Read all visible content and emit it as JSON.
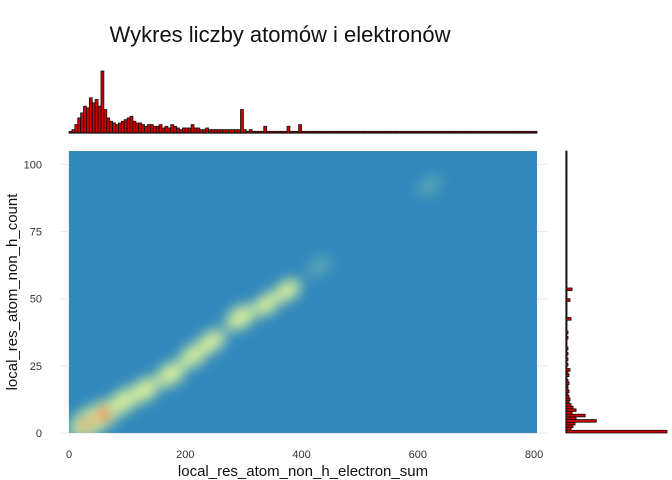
{
  "chart_data": {
    "type": "heatmap",
    "title": "Wykres liczby atomów i elektronów",
    "xlabel": "local_res_atom_non_h_electron_sum",
    "ylabel": "local_res_atom_non_h_count",
    "x_ticks": [
      "0",
      "200",
      "400",
      "600",
      "800"
    ],
    "y_ticks": [
      "0",
      "25",
      "50",
      "75",
      "100"
    ],
    "xlim": [
      0,
      805
    ],
    "ylim": [
      0,
      105
    ],
    "grid": true,
    "legend": "none",
    "colors": {
      "background_density": "#3288bd",
      "low_density": "#abdda4",
      "mid_density": "#e6f598",
      "high_density": "#f46d43",
      "peak_density": "#d53e4f",
      "histogram_fill": "#cc0000",
      "histogram_stroke": "#111111"
    },
    "density_peaks": [
      {
        "x": 35,
        "y": 4,
        "level": 1.0
      },
      {
        "x": 60,
        "y": 7,
        "level": 0.75
      },
      {
        "x": 95,
        "y": 12,
        "level": 0.55
      },
      {
        "x": 130,
        "y": 16,
        "level": 0.5
      },
      {
        "x": 175,
        "y": 22,
        "level": 0.48
      },
      {
        "x": 215,
        "y": 29,
        "level": 0.45
      },
      {
        "x": 245,
        "y": 34,
        "level": 0.4
      },
      {
        "x": 295,
        "y": 43,
        "level": 0.5
      },
      {
        "x": 340,
        "y": 48,
        "level": 0.35
      },
      {
        "x": 375,
        "y": 53,
        "level": 0.35
      },
      {
        "x": 430,
        "y": 62,
        "level": 0.12
      },
      {
        "x": 620,
        "y": 92,
        "level": 0.08
      }
    ],
    "x_marginal_histogram": {
      "bin_width": 5,
      "bin_start": 0,
      "counts": [
        1,
        2,
        5,
        9,
        12,
        16,
        15,
        21,
        18,
        20,
        16,
        37,
        14,
        9,
        7,
        6,
        5,
        6,
        7,
        8,
        9,
        10,
        7,
        6,
        6,
        5,
        4,
        5,
        5,
        4,
        4,
        5,
        3,
        4,
        3,
        5,
        4,
        3,
        2,
        3,
        3,
        3,
        5,
        3,
        3,
        2,
        2,
        3,
        2,
        2,
        2,
        2,
        2,
        2,
        2,
        2,
        2,
        2,
        2,
        14,
        2,
        1,
        2,
        1,
        1,
        1,
        1,
        4,
        1,
        1,
        1,
        1,
        1,
        1,
        1,
        4,
        1,
        1,
        1,
        5,
        1,
        1,
        1,
        1,
        1,
        1,
        1,
        1,
        1,
        1,
        1,
        1,
        1,
        1,
        1,
        1,
        1,
        1,
        1,
        1,
        1,
        1,
        1,
        1,
        1,
        1,
        1,
        1,
        1,
        1,
        1,
        1,
        1,
        1,
        1,
        1,
        1,
        1,
        1,
        1,
        1,
        1,
        1,
        1,
        1,
        1,
        1,
        1,
        1,
        1,
        1,
        1,
        1,
        1,
        1,
        1,
        1,
        1,
        1,
        1,
        1,
        1,
        1,
        1,
        1,
        1,
        1,
        1,
        1,
        1,
        1,
        1,
        1,
        1,
        1,
        1,
        1,
        1,
        1,
        1,
        1
      ]
    },
    "y_marginal_histogram": {
      "bin_width": 1,
      "bin_start": 0,
      "counts": [
        100,
        5,
        7,
        9,
        30,
        10,
        19,
        6,
        10,
        7,
        5,
        3,
        4,
        3,
        2,
        3,
        2,
        2,
        3,
        2,
        1,
        3,
        2,
        4,
        1,
        2,
        1,
        2,
        1,
        2,
        1,
        2,
        1,
        1,
        1,
        2,
        1,
        2,
        1,
        1,
        1,
        1,
        5,
        1,
        1,
        1,
        1,
        1,
        1,
        4,
        1,
        1,
        1,
        6,
        1,
        1,
        1,
        1,
        1,
        1,
        1,
        1,
        1,
        1,
        1,
        1,
        1,
        1,
        1,
        1,
        1,
        1,
        1,
        1,
        1,
        1,
        1,
        1,
        1,
        1,
        1,
        1,
        1,
        1,
        1,
        1,
        1,
        1,
        1,
        1,
        1,
        1,
        1,
        1,
        1,
        1,
        1,
        1,
        1,
        1,
        1,
        1,
        1,
        1,
        1
      ]
    }
  }
}
